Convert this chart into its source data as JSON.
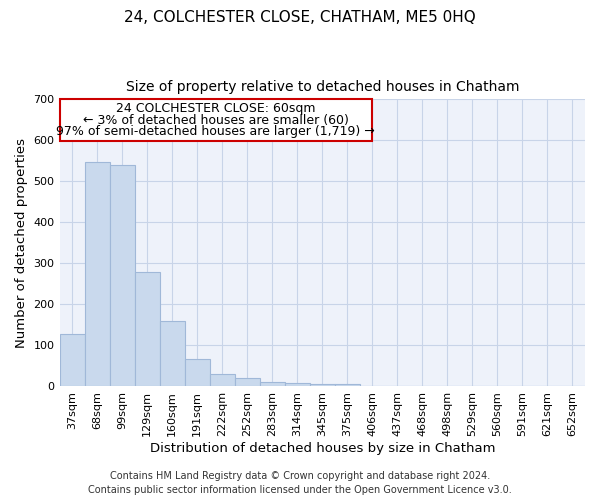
{
  "title": "24, COLCHESTER CLOSE, CHATHAM, ME5 0HQ",
  "subtitle": "Size of property relative to detached houses in Chatham",
  "xlabel": "Distribution of detached houses by size in Chatham",
  "ylabel": "Number of detached properties",
  "categories": [
    "37sqm",
    "68sqm",
    "99sqm",
    "129sqm",
    "160sqm",
    "191sqm",
    "222sqm",
    "252sqm",
    "283sqm",
    "314sqm",
    "345sqm",
    "375sqm",
    "406sqm",
    "437sqm",
    "468sqm",
    "498sqm",
    "529sqm",
    "560sqm",
    "591sqm",
    "621sqm",
    "652sqm"
  ],
  "values": [
    128,
    548,
    540,
    280,
    160,
    68,
    30,
    20,
    10,
    8,
    7,
    5,
    0,
    0,
    0,
    0,
    0,
    0,
    0,
    0,
    0
  ],
  "bar_color": "#c9d9ed",
  "bar_edge_color": "#a0b8d8",
  "annotation_line1": "24 COLCHESTER CLOSE: 60sqm",
  "annotation_line2": "← 3% of detached houses are smaller (60)",
  "annotation_line3": "97% of semi-detached houses are larger (1,719) →",
  "annotation_box_color": "#ffffff",
  "annotation_box_edge_color": "#cc0000",
  "footer_line1": "Contains HM Land Registry data © Crown copyright and database right 2024.",
  "footer_line2": "Contains public sector information licensed under the Open Government Licence v3.0.",
  "background_color": "#ffffff",
  "plot_bg_color": "#eef2fa",
  "grid_color": "#c8d4e8",
  "ylim": [
    0,
    700
  ],
  "yticks": [
    0,
    100,
    200,
    300,
    400,
    500,
    600,
    700
  ],
  "title_fontsize": 11,
  "subtitle_fontsize": 10,
  "axis_label_fontsize": 9.5,
  "tick_fontsize": 8,
  "annotation_fontsize": 9,
  "footer_fontsize": 7
}
